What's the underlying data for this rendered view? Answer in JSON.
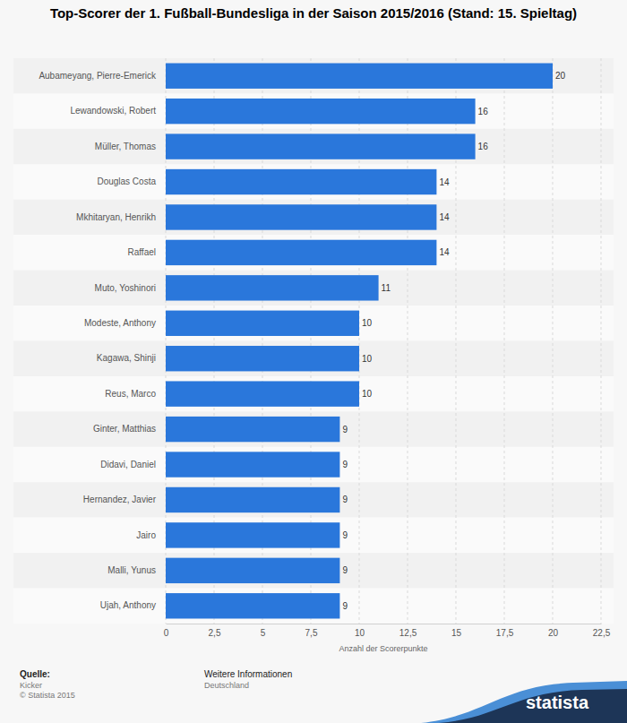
{
  "chart_data": {
    "type": "bar",
    "orientation": "horizontal",
    "title": "Top-Scorer der 1. Fußball-Bundesliga in der Saison 2015/2016 (Stand: 15. Spieltag)",
    "xlabel": "Anzahl der Scorerpunkte",
    "categories": [
      "Aubameyang, Pierre-Emerick",
      "Lewandowski, Robert",
      "Müller, Thomas",
      "Douglas Costa",
      "Mkhitaryan, Henrikh",
      "Raffael",
      "Muto, Yoshinori",
      "Modeste, Anthony",
      "Kagawa, Shinji",
      "Reus, Marco",
      "Ginter, Matthias",
      "Didavi, Daniel",
      "Hernandez, Javier",
      "Jairo",
      "Malli, Yunus",
      "Ujah, Anthony"
    ],
    "values": [
      20,
      16,
      16,
      14,
      14,
      14,
      11,
      10,
      10,
      10,
      9,
      9,
      9,
      9,
      9,
      9
    ],
    "color": "#2a77db",
    "xlim": [
      0,
      22.5
    ],
    "xticks": [
      0,
      {
        "value": 2.5,
        "label": "2,5"
      },
      5,
      {
        "value": 7.5,
        "label": "7,5"
      },
      10,
      {
        "value": 12.5,
        "label": "12,5"
      },
      15,
      {
        "value": 17.5,
        "label": "17,5"
      },
      20,
      {
        "value": 22.5,
        "label": "22,5"
      }
    ],
    "grid": true,
    "data_labels": true,
    "annotations": [
      "Quelle:",
      "Kicker",
      "© Statista 2015",
      "Weitere Informationen",
      "Deutschland",
      "statista"
    ]
  }
}
